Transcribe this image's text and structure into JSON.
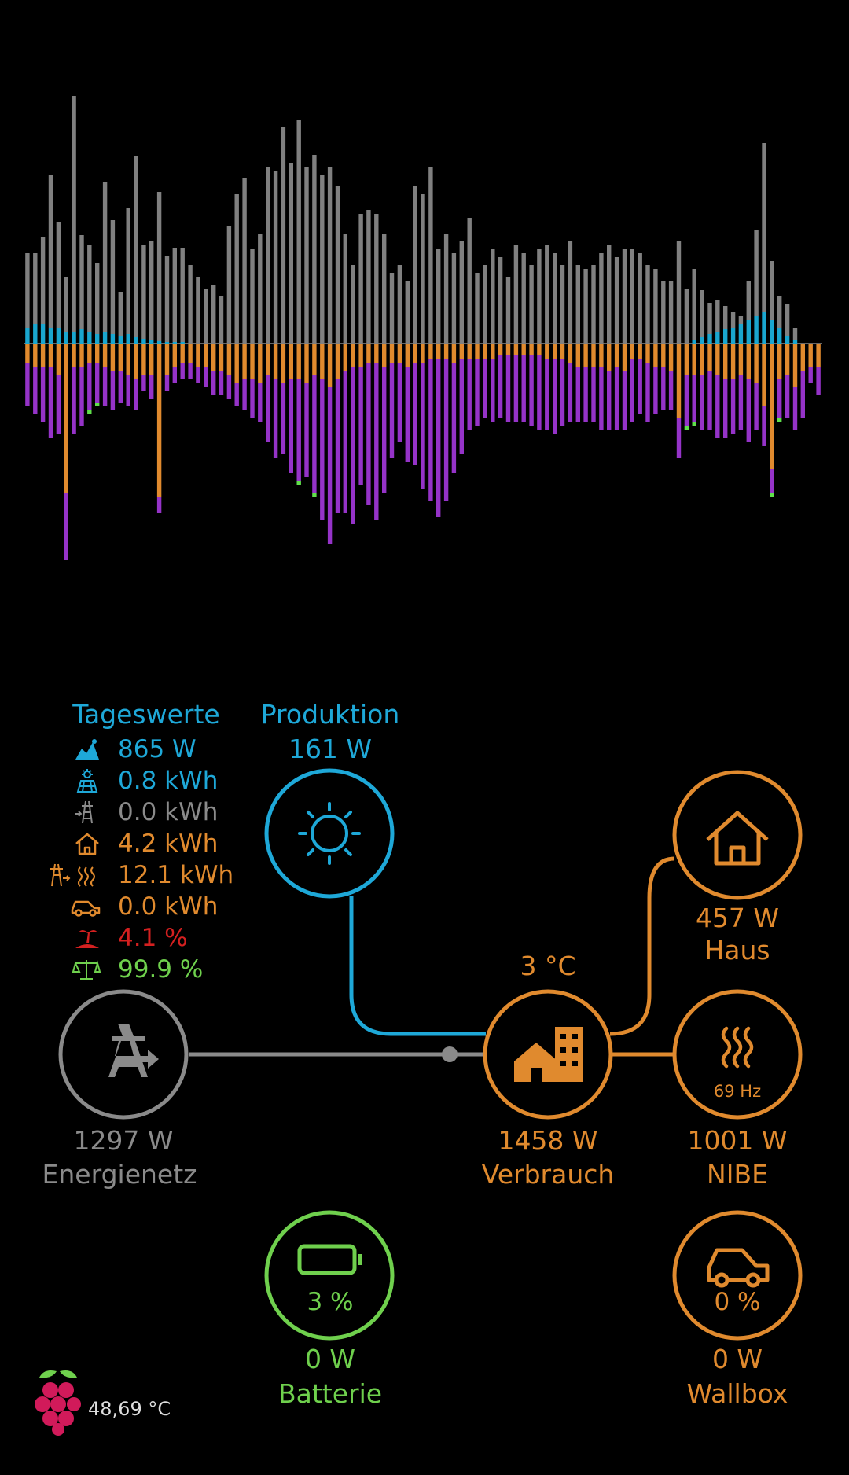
{
  "chart_data": {
    "type": "bar",
    "description_series": [
      "top-gray",
      "top-cyan",
      "bottom-orange",
      "bottom-purple",
      "bottom-green"
    ],
    "series": [
      {
        "name": "",
        "color": "#808080",
        "values": [
          95,
          90,
          110,
          195,
          135,
          70,
          300,
          120,
          110,
          90,
          190,
          145,
          55,
          160,
          230,
          120,
          125,
          190,
          110,
          120,
          120,
          100,
          85,
          70,
          75,
          60,
          150,
          190,
          210,
          120,
          140,
          225,
          220,
          275,
          230,
          285,
          225,
          240,
          215,
          225,
          200,
          140,
          100,
          165,
          170,
          165,
          140,
          90,
          100,
          80,
          200,
          190,
          225,
          120,
          140,
          115,
          130,
          160,
          90,
          100,
          120,
          110,
          85,
          125,
          115,
          100,
          120,
          125,
          115,
          100,
          130,
          100,
          95,
          100,
          115,
          125,
          110,
          120,
          120,
          115,
          100,
          95,
          80,
          80,
          130,
          70,
          90,
          60,
          40,
          40,
          30,
          20,
          10,
          50,
          110,
          215,
          75,
          40,
          40,
          15,
          0,
          0,
          0
        ]
      },
      {
        "name": "",
        "color": "#1aa6cf",
        "values": [
          20,
          25,
          25,
          20,
          20,
          15,
          15,
          18,
          15,
          12,
          15,
          12,
          10,
          12,
          8,
          6,
          5,
          3,
          2,
          2,
          2,
          0,
          0,
          0,
          0,
          0,
          0,
          0,
          0,
          0,
          0,
          0,
          0,
          0,
          0,
          0,
          0,
          0,
          0,
          0,
          0,
          0,
          0,
          0,
          0,
          0,
          0,
          0,
          0,
          0,
          0,
          0,
          0,
          0,
          0,
          0,
          0,
          0,
          0,
          0,
          0,
          0,
          0,
          0,
          0,
          0,
          0,
          0,
          0,
          0,
          0,
          0,
          0,
          0,
          0,
          0,
          0,
          0,
          0,
          0,
          0,
          0,
          0,
          0,
          0,
          0,
          5,
          8,
          12,
          15,
          18,
          20,
          25,
          30,
          35,
          40,
          30,
          20,
          10,
          5,
          0,
          0,
          0
        ]
      },
      {
        "name": "",
        "color": "#e08a2e",
        "values": [
          25,
          30,
          30,
          30,
          40,
          190,
          30,
          30,
          25,
          25,
          30,
          35,
          35,
          40,
          45,
          40,
          40,
          195,
          40,
          30,
          25,
          25,
          30,
          30,
          35,
          35,
          40,
          50,
          45,
          45,
          50,
          40,
          45,
          50,
          45,
          45,
          50,
          40,
          45,
          55,
          45,
          35,
          30,
          30,
          25,
          25,
          30,
          25,
          25,
          30,
          25,
          25,
          20,
          20,
          20,
          25,
          20,
          20,
          20,
          20,
          20,
          15,
          15,
          15,
          15,
          15,
          15,
          20,
          20,
          20,
          25,
          30,
          30,
          30,
          30,
          35,
          30,
          35,
          20,
          20,
          25,
          30,
          30,
          35,
          95,
          40,
          40,
          40,
          35,
          40,
          45,
          45,
          40,
          45,
          50,
          80,
          160,
          45,
          40,
          55,
          35,
          30,
          30
        ]
      },
      {
        "name": "",
        "color": "#9533c8",
        "values": [
          55,
          60,
          70,
          90,
          75,
          85,
          85,
          75,
          60,
          50,
          50,
          50,
          40,
          40,
          40,
          20,
          30,
          20,
          20,
          20,
          20,
          20,
          20,
          25,
          30,
          30,
          30,
          30,
          40,
          50,
          50,
          85,
          100,
          90,
          120,
          130,
          120,
          150,
          180,
          200,
          170,
          180,
          200,
          150,
          180,
          200,
          160,
          120,
          100,
          120,
          130,
          160,
          180,
          200,
          180,
          140,
          120,
          90,
          85,
          75,
          80,
          80,
          85,
          85,
          85,
          90,
          95,
          90,
          95,
          85,
          75,
          70,
          70,
          70,
          80,
          75,
          80,
          75,
          80,
          70,
          75,
          60,
          55,
          50,
          50,
          65,
          60,
          70,
          75,
          80,
          75,
          70,
          70,
          80,
          60,
          50,
          30,
          50,
          55,
          55,
          60,
          20,
          35
        ]
      },
      {
        "name": "",
        "color": "#5fe04a",
        "values": [
          0,
          0,
          0,
          0,
          0,
          0,
          0,
          0,
          5,
          5,
          0,
          0,
          0,
          0,
          0,
          0,
          0,
          0,
          0,
          0,
          0,
          0,
          0,
          0,
          0,
          0,
          0,
          0,
          0,
          0,
          0,
          0,
          0,
          0,
          0,
          5,
          0,
          5,
          0,
          0,
          0,
          0,
          0,
          0,
          0,
          0,
          0,
          0,
          0,
          0,
          0,
          0,
          0,
          0,
          0,
          0,
          0,
          0,
          0,
          0,
          0,
          0,
          0,
          0,
          0,
          0,
          0,
          0,
          0,
          0,
          0,
          0,
          0,
          0,
          0,
          0,
          0,
          0,
          0,
          0,
          0,
          0,
          0,
          0,
          0,
          5,
          5,
          0,
          0,
          0,
          0,
          0,
          0,
          0,
          0,
          0,
          5,
          5,
          0,
          0,
          0,
          0,
          0
        ]
      }
    ]
  },
  "stats": {
    "title": "Tageswerte",
    "rows": [
      {
        "icon": "solar-peak-icon",
        "value": "865 W",
        "color": "#1ea8d8"
      },
      {
        "icon": "solar-panel-icon",
        "value": "0.8 kWh",
        "color": "#1ea8d8"
      },
      {
        "icon": "grid-feed-in-icon",
        "value": "0.0 kWh",
        "color": "#8a8a8a"
      },
      {
        "icon": "house-icon",
        "value": "4.2 kWh",
        "color": "#e08a2e"
      },
      {
        "icon": "grid-heat-icon",
        "value": "12.1 kWh",
        "color": "#e08a2e"
      },
      {
        "icon": "car-icon",
        "value": "0.0 kWh",
        "color": "#e08a2e"
      },
      {
        "icon": "island-icon",
        "value": "4.1 %",
        "color": "#d42020"
      },
      {
        "icon": "balance-icon",
        "value": "99.9 %",
        "color": "#6fd04d"
      }
    ]
  },
  "production": {
    "title": "Produktion",
    "value": "161 W"
  },
  "grid": {
    "value": "1297 W",
    "label": "Energienetz"
  },
  "consumption": {
    "temp": "3 °C",
    "value": "1458 W",
    "label": "Verbrauch"
  },
  "house": {
    "value": "457 W",
    "label": "Haus"
  },
  "nibe": {
    "freq": "69 Hz",
    "value": "1001 W",
    "label": "NIBE"
  },
  "battery": {
    "percent": "3 %",
    "value": "0 W",
    "label": "Batterie"
  },
  "wallbox": {
    "percent": "0 %",
    "value": "0 W",
    "label": "Wallbox"
  },
  "pi": {
    "temp": "48,69 °C"
  },
  "colors": {
    "blue": "#1ea8d8",
    "orange": "#e08a2e",
    "gray": "#8a8a8a",
    "green": "#6fd04d"
  }
}
